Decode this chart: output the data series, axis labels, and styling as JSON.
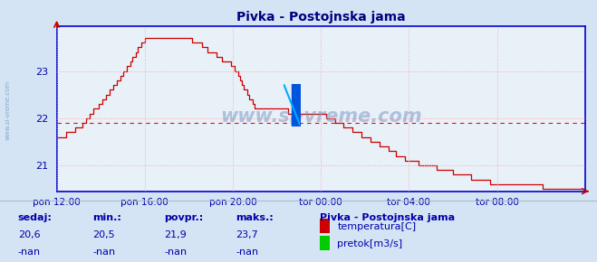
{
  "title": "Pivka - Postojnska jama",
  "bg_color": "#d4e4f4",
  "plot_bg_color": "#e8f0f8",
  "grid_color": "#ffaaaa",
  "line_color": "#cc0000",
  "avg_line_color": "#ff0000",
  "avg_value": 21.9,
  "ylim": [
    20.45,
    23.95
  ],
  "yticks": [
    21,
    22,
    23
  ],
  "title_color": "#000080",
  "text_color": "#0000aa",
  "axis_color": "#0000cc",
  "bottom_labels": [
    "sedaj:",
    "min.:",
    "povpr.:",
    "maks.:"
  ],
  "bottom_values": [
    "20,6",
    "20,5",
    "21,9",
    "23,7"
  ],
  "bottom_values2": [
    "-nan",
    "-nan",
    "-nan",
    "-nan"
  ],
  "legend_title": "Pivka - Postojnska jama",
  "legend_items": [
    "temperatura[C]",
    "pretok[m3/s]"
  ],
  "legend_colors": [
    "#cc0000",
    "#00cc00"
  ],
  "x_tick_labels": [
    "pon 12:00",
    "pon 16:00",
    "pon 20:00",
    "tor 00:00",
    "tor 04:00",
    "tor 08:00"
  ],
  "x_tick_positions": [
    0,
    48,
    96,
    144,
    192,
    240
  ],
  "total_points": 289
}
